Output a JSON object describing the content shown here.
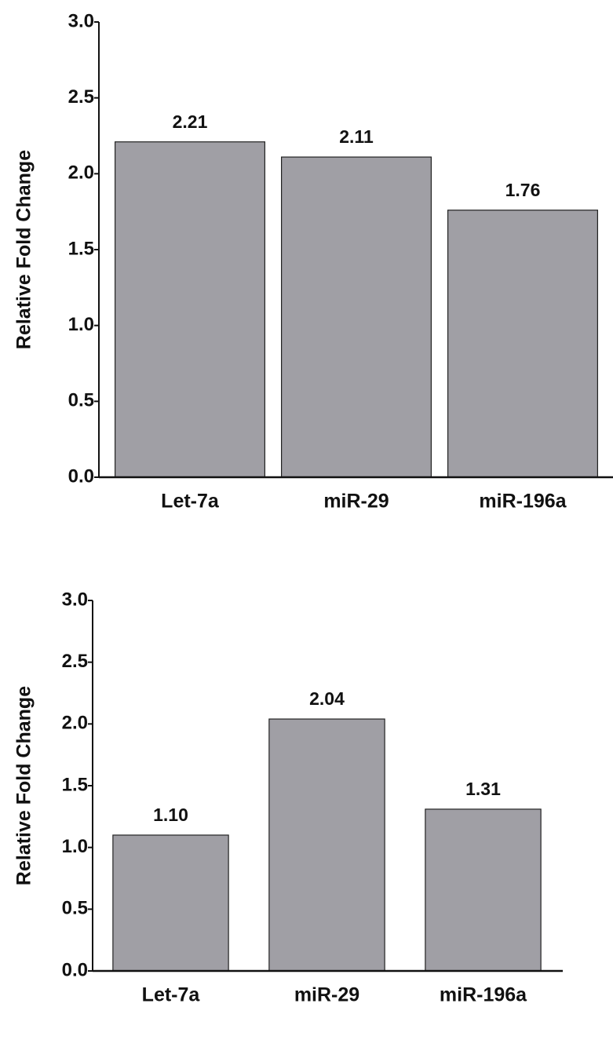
{
  "chart_data": [
    {
      "type": "bar",
      "y_label": "Relative Fold Change",
      "categories": [
        "Let-7a",
        "miR-29",
        "miR-196a"
      ],
      "values": [
        2.21,
        2.11,
        1.76
      ],
      "value_labels": [
        "2.21",
        "2.11",
        "1.76"
      ],
      "color": "#a09fa5",
      "ylim": [
        0,
        3
      ],
      "yticks": [
        {
          "value": 0,
          "label": "0.0"
        },
        0.5,
        {
          "value": 1,
          "label": "1.0"
        },
        1.5,
        {
          "value": 2,
          "label": "2.0"
        },
        2.5,
        {
          "value": 3,
          "label": "3.0"
        }
      ]
    },
    {
      "type": "bar",
      "y_label": "Relative Fold Change",
      "categories": [
        "Let-7a",
        "miR-29",
        "miR-196a"
      ],
      "values": [
        1.1,
        2.04,
        1.31
      ],
      "value_labels": [
        "1.10",
        "2.04",
        "1.31"
      ],
      "color": "#a09fa5",
      "ylim": [
        0,
        3
      ],
      "yticks": [
        {
          "value": 0,
          "label": "0.0"
        },
        0.5,
        {
          "value": 1,
          "label": "1.0"
        },
        1.5,
        {
          "value": 2,
          "label": "2.0"
        },
        2.5,
        {
          "value": 3,
          "label": "3.0"
        }
      ]
    }
  ]
}
